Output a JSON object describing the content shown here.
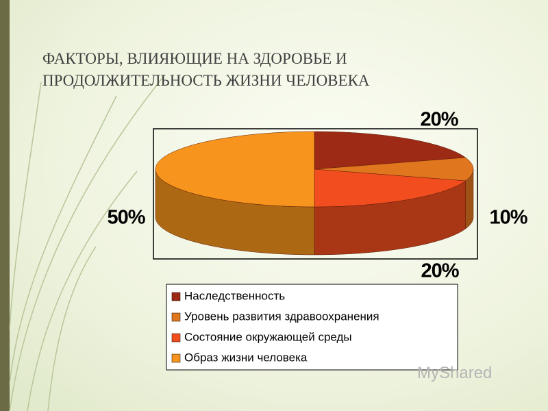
{
  "chart_data": {
    "type": "pie",
    "title": "ФАКТОРЫ, ВЛИЯЮЩИЕ НА ЗДОРОВЬЕ И ПРОДОЛЖИТЕЛЬНОСТЬ ЖИЗНИ ЧЕЛОВЕКА",
    "categories": [
      "Наследственность",
      "Уровень развития здравоохранения",
      "Состояние окружающей среды",
      "Образ жизни человека"
    ],
    "values": [
      20,
      10,
      20,
      50
    ],
    "value_labels": [
      "20%",
      "10%",
      "20%",
      "50%"
    ],
    "colors": [
      "#9c2a14",
      "#e0761e",
      "#f24d1e",
      "#f7941d"
    ],
    "legend": "bottom"
  },
  "watermark": "MyShared"
}
